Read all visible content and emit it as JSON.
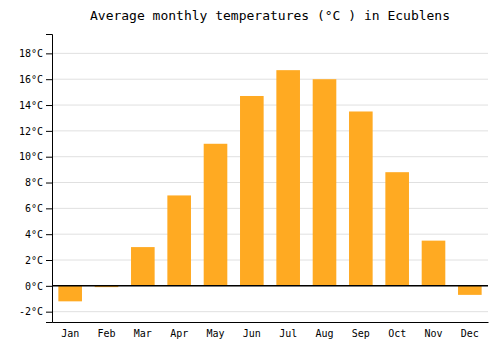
{
  "chart_data": {
    "type": "bar",
    "title": "Average monthly temperatures (°C ) in Ecublens",
    "categories": [
      "Jan",
      "Feb",
      "Mar",
      "Apr",
      "May",
      "Jun",
      "Jul",
      "Aug",
      "Sep",
      "Oct",
      "Nov",
      "Dec"
    ],
    "values": [
      -1.2,
      -0.1,
      3.0,
      7.0,
      11.0,
      14.7,
      16.7,
      16.0,
      13.5,
      8.8,
      3.5,
      -0.7
    ],
    "color": "#FFAA22",
    "ylim": [
      -2.8,
      19.5
    ],
    "yticks": [
      {
        "value": -2,
        "label": "-2°C"
      },
      {
        "value": 0,
        "label": "0°C"
      },
      {
        "value": 2,
        "label": "2°C"
      },
      {
        "value": 4,
        "label": "4°C"
      },
      {
        "value": 6,
        "label": "6°C"
      },
      {
        "value": 8,
        "label": "8°C"
      },
      {
        "value": 10,
        "label": "10°C"
      },
      {
        "value": 12,
        "label": "12°C"
      },
      {
        "value": 14,
        "label": "14°C"
      },
      {
        "value": 16,
        "label": "16°C"
      },
      {
        "value": 18,
        "label": "18°C"
      }
    ],
    "grid": true
  }
}
